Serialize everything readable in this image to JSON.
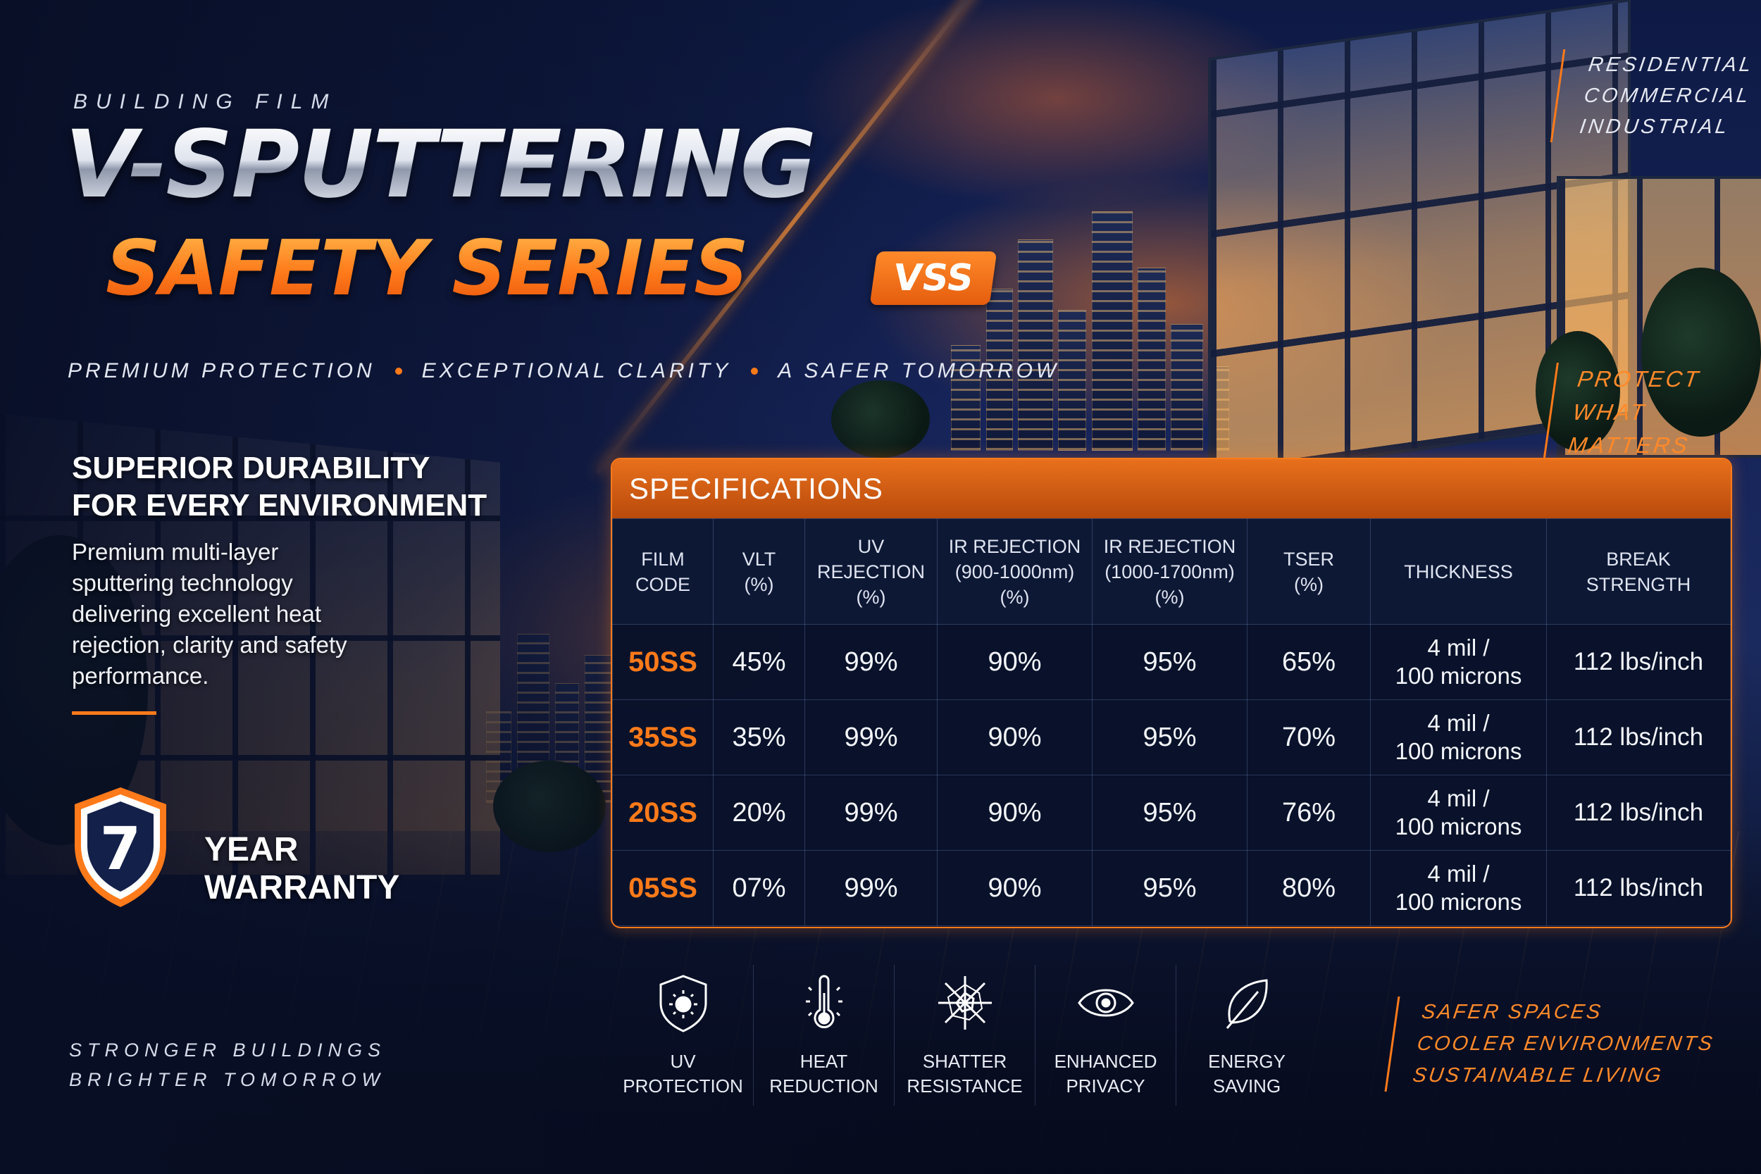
{
  "header": {
    "eyebrow": "BUILDING FILM",
    "title": "V-SPUTTERING",
    "subtitle": "SAFETY SERIES",
    "badge": "VSS",
    "taglines": [
      "PREMIUM PROTECTION",
      "EXCEPTIONAL CLARITY",
      "A SAFER TOMORROW"
    ]
  },
  "sectors": [
    "RESIDENTIAL",
    "COMMERCIAL",
    "INDUSTRIAL"
  ],
  "protect": [
    "PROTECT",
    "WHAT MATTERS"
  ],
  "left_panel": {
    "heading_line1": "SUPERIOR DURABILITY",
    "heading_line2": "FOR EVERY ENVIRONMENT",
    "description": "Premium multi-layer sputtering technology delivering excellent heat rejection, clarity and safety performance.",
    "warranty_number": "7",
    "warranty_line1": "YEAR",
    "warranty_line2": "WARRANTY",
    "slogan_line1": "STRONGER BUILDINGS",
    "slogan_line2": "BRIGHTER TOMORROW"
  },
  "specs": {
    "title": "SPECIFICATIONS",
    "columns": [
      [
        "FILM",
        "CODE"
      ],
      [
        "VLT",
        "(%)"
      ],
      [
        "UV",
        "REJECTION",
        "(%)"
      ],
      [
        "IR REJECTION",
        "(900-1000nm)",
        "(%)"
      ],
      [
        "IR REJECTION",
        "(1000-1700nm)",
        "(%)"
      ],
      [
        "TSER",
        "(%)"
      ],
      [
        "THICKNESS"
      ],
      [
        "BREAK",
        "STRENGTH"
      ]
    ],
    "rows": [
      {
        "code": "50SS",
        "vlt": "45%",
        "uv": "99%",
        "ir1": "90%",
        "ir2": "95%",
        "tser": "65%",
        "thick1": "4 mil /",
        "thick2": "100 microns",
        "break": "112 lbs/inch"
      },
      {
        "code": "35SS",
        "vlt": "35%",
        "uv": "99%",
        "ir1": "90%",
        "ir2": "95%",
        "tser": "70%",
        "thick1": "4 mil /",
        "thick2": "100 microns",
        "break": "112 lbs/inch"
      },
      {
        "code": "20SS",
        "vlt": "20%",
        "uv": "99%",
        "ir1": "90%",
        "ir2": "95%",
        "tser": "76%",
        "thick1": "4 mil /",
        "thick2": "100 microns",
        "break": "112 lbs/inch"
      },
      {
        "code": "05SS",
        "vlt": "07%",
        "uv": "99%",
        "ir1": "90%",
        "ir2": "95%",
        "tser": "80%",
        "thick1": "4 mil /",
        "thick2": "100 microns",
        "break": "112 lbs/inch"
      }
    ]
  },
  "features": [
    {
      "icon": "uv-shield-icon",
      "label1": "UV",
      "label2": "PROTECTION"
    },
    {
      "icon": "thermometer-icon",
      "label1": "HEAT",
      "label2": "REDUCTION"
    },
    {
      "icon": "shatter-icon",
      "label1": "SHATTER",
      "label2": "RESISTANCE"
    },
    {
      "icon": "eye-icon",
      "label1": "ENHANCED",
      "label2": "PRIVACY"
    },
    {
      "icon": "leaf-icon",
      "label1": "ENERGY",
      "label2": "SAVING"
    }
  ],
  "benefits": [
    "SAFER SPACES",
    "COOLER ENVIRONMENTS",
    "SUSTAINABLE LIVING"
  ],
  "colors": {
    "accent": "#ff7a1a",
    "navy": "#0b1633"
  }
}
